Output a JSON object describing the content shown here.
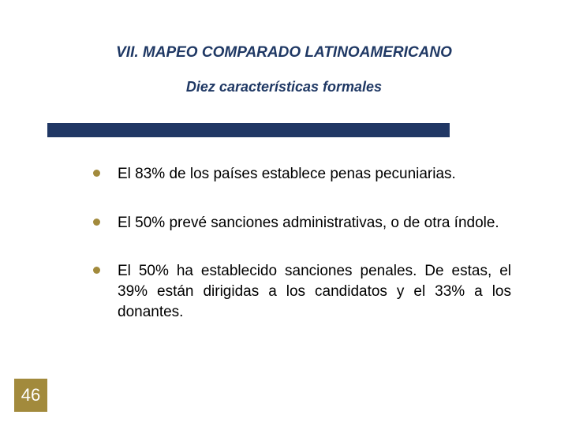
{
  "title": "VII. MAPEO COMPARADO LATINOAMERICANO",
  "subtitle": "Diez características formales",
  "bullets": [
    {
      "text": "El 83% de los países establece penas pecuniarias."
    },
    {
      "text": "El 50% prevé sanciones administrativas, o de otra índole."
    },
    {
      "text": "El 50% ha establecido sanciones penales. De estas, el 39% están dirigidas a los candidatos y el 33% a los donantes."
    }
  ],
  "page_number": "46",
  "colors": {
    "title_color": "#1f3864",
    "divider_color": "#203764",
    "bullet_color": "#a28a3c",
    "page_badge_bg": "#a28a3c",
    "page_badge_fg": "#ffffff",
    "body_text": "#000000",
    "background": "#ffffff"
  },
  "typography": {
    "title_fontsize": 19,
    "subtitle_fontsize": 18,
    "body_fontsize": 19,
    "page_num_fontsize": 22,
    "title_style": "bold italic",
    "subtitle_style": "bold italic"
  }
}
